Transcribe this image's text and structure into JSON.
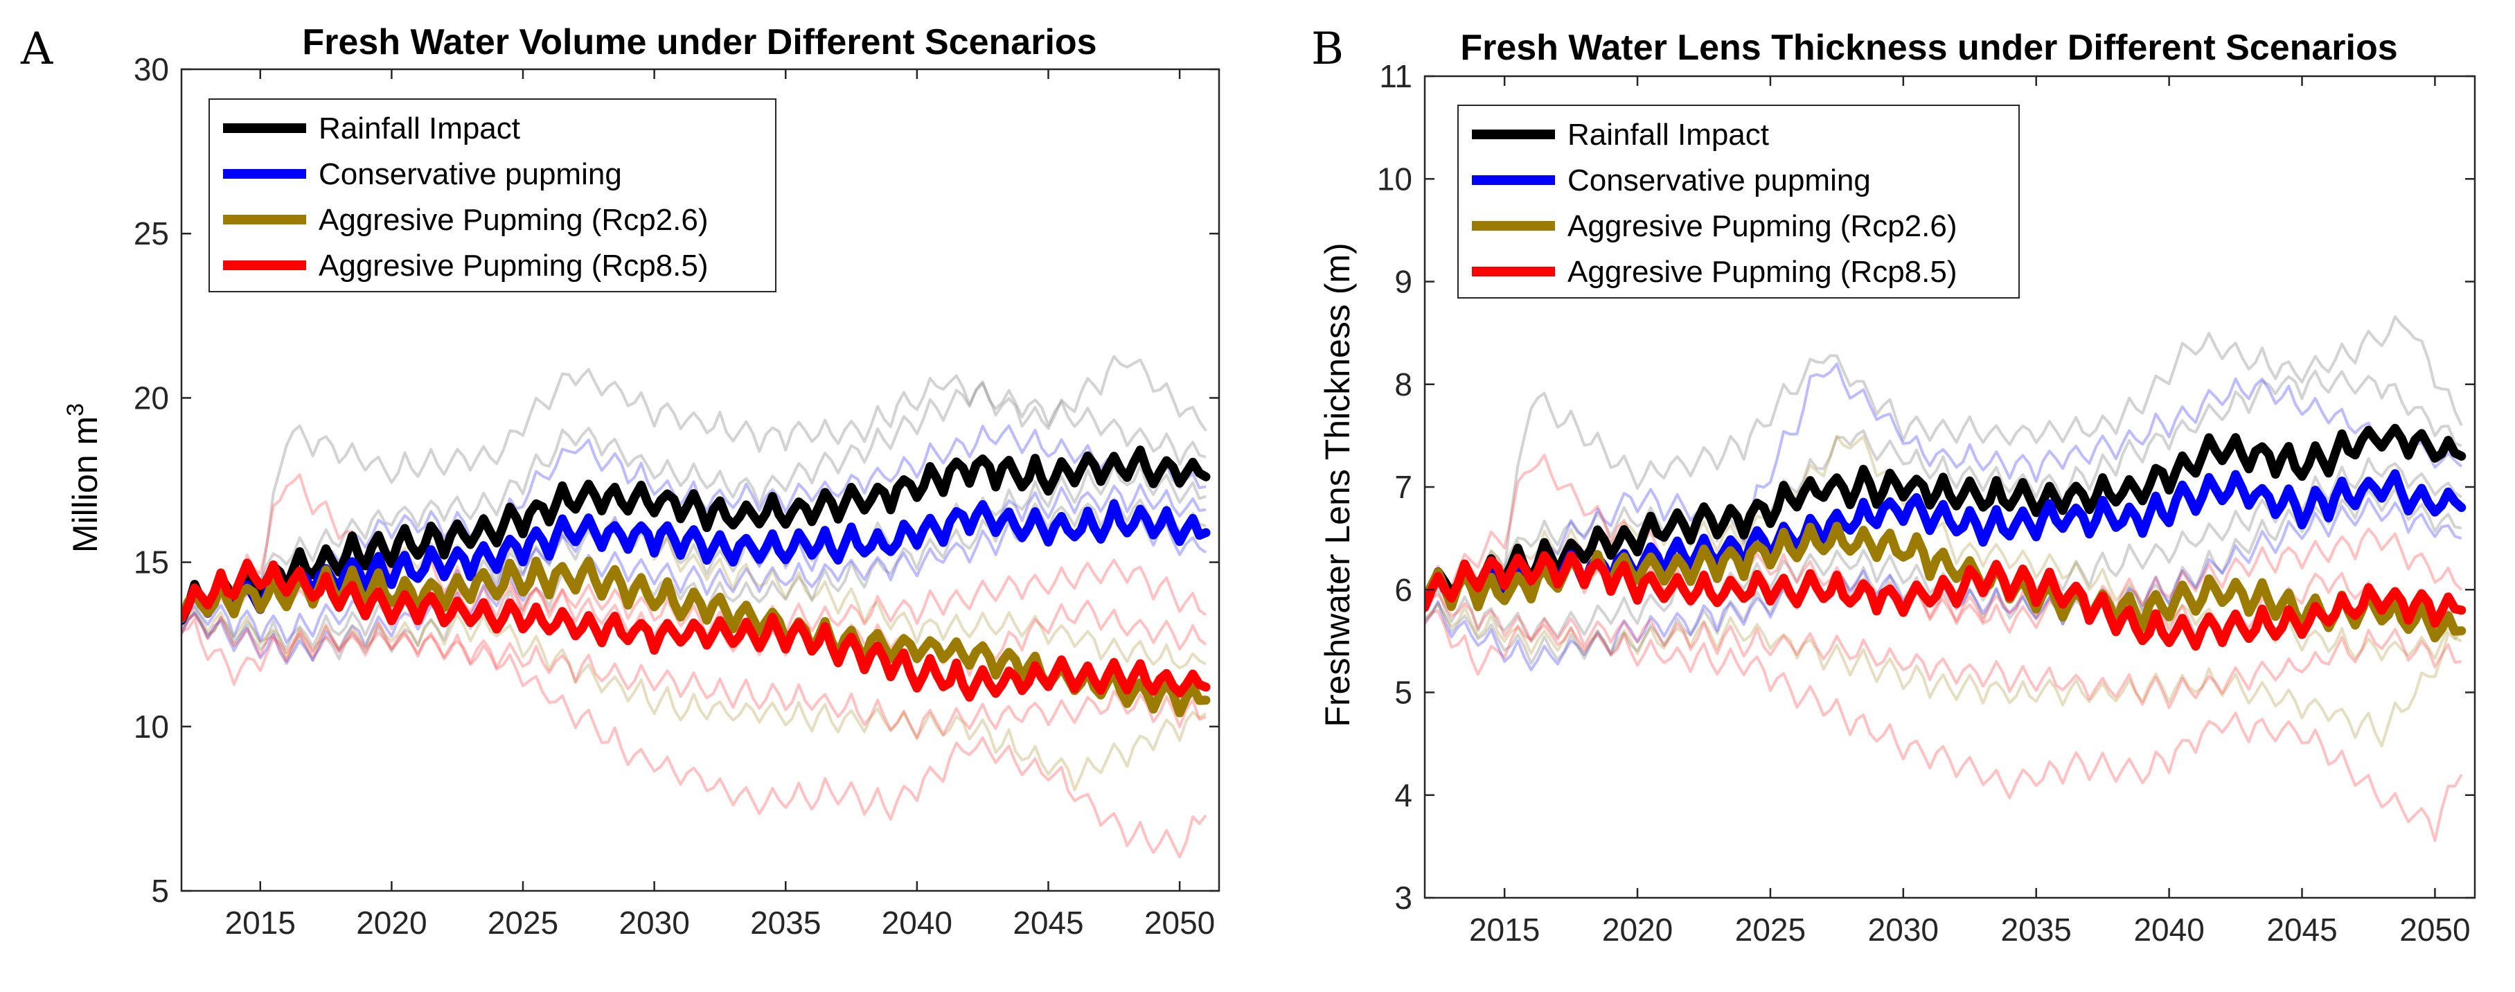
{
  "chart_data": [
    {
      "type": "line",
      "panel_label": "A",
      "title": "Fresh Water Volume under Different Scenarios",
      "xlabel": "",
      "ylabel": "Million m",
      "ylabel_superscript": "3",
      "xlim": [
        2012,
        2051.5
      ],
      "ylim": [
        5,
        30
      ],
      "xticks": [
        2015,
        2020,
        2025,
        2030,
        2035,
        2040,
        2045,
        2050
      ],
      "yticks": [
        5,
        10,
        15,
        20,
        25,
        30
      ],
      "legend_location": "top-left",
      "series": [
        {
          "name": "Rainfall Impact",
          "color": "#000000",
          "x": [
            2012,
            2015,
            2018,
            2021,
            2024,
            2027,
            2030,
            2033,
            2036,
            2039,
            2042,
            2045,
            2048,
            2051
          ],
          "y": [
            13.7,
            14.4,
            15.2,
            15.6,
            16.0,
            17.0,
            16.9,
            16.4,
            16.6,
            17.1,
            17.9,
            17.6,
            18.0,
            17.6
          ]
        },
        {
          "name": "Conservative pupming",
          "color": "#0000ff",
          "x": [
            2012,
            2015,
            2018,
            2021,
            2024,
            2027,
            2030,
            2033,
            2036,
            2039,
            2042,
            2045,
            2048,
            2051
          ],
          "y": [
            13.7,
            14.1,
            14.6,
            14.8,
            15.2,
            15.9,
            15.8,
            15.4,
            15.5,
            15.6,
            16.4,
            16.0,
            16.3,
            15.9
          ]
        },
        {
          "name": "Aggresive Pupming (Rcp2.6)",
          "color": "#9b7b00",
          "x": [
            2012,
            2015,
            2018,
            2021,
            2024,
            2027,
            2030,
            2033,
            2036,
            2039,
            2042,
            2045,
            2048,
            2051
          ],
          "y": [
            13.7,
            14.0,
            14.3,
            14.0,
            14.4,
            14.6,
            14.0,
            13.5,
            12.8,
            12.4,
            12.3,
            11.6,
            11.1,
            10.8
          ]
        },
        {
          "name": "Aggresive Pupming (Rcp8.5)",
          "color": "#ff0000",
          "x": [
            2012,
            2015,
            2018,
            2021,
            2024,
            2027,
            2030,
            2033,
            2036,
            2039,
            2042,
            2045,
            2048,
            2051
          ],
          "y": [
            13.7,
            14.6,
            14.0,
            13.6,
            13.4,
            13.1,
            12.8,
            12.9,
            12.7,
            11.9,
            11.3,
            11.5,
            11.5,
            11.2
          ]
        }
      ],
      "background_traces": [
        {
          "color": "#808080",
          "x": [
            2012,
            2015,
            2016,
            2020,
            2024,
            2027,
            2030,
            2034,
            2038,
            2041,
            2045,
            2048,
            2051
          ],
          "y": [
            13.7,
            14.5,
            19.0,
            17.8,
            18.3,
            20.8,
            19.6,
            18.8,
            19.1,
            20.5,
            19.3,
            21.2,
            19.0
          ]
        },
        {
          "color": "#808080",
          "x": [
            2012,
            2016,
            2020,
            2024,
            2027,
            2030,
            2034,
            2038,
            2042,
            2046,
            2051
          ],
          "y": [
            13.5,
            15.2,
            16.4,
            16.8,
            19.0,
            17.8,
            17.2,
            18.4,
            20.2,
            19.4,
            18.2
          ]
        },
        {
          "color": "#808080",
          "x": [
            2012,
            2016,
            2020,
            2024,
            2028,
            2032,
            2036,
            2040,
            2044,
            2048,
            2051
          ],
          "y": [
            13.2,
            12.7,
            13.4,
            14.8,
            15.8,
            15.1,
            15.3,
            16.0,
            16.9,
            17.6,
            17.0
          ]
        },
        {
          "color": "#808080",
          "x": [
            2012,
            2016,
            2020,
            2024,
            2028,
            2032,
            2036,
            2040,
            2044,
            2048,
            2051
          ],
          "y": [
            13.3,
            12.4,
            12.6,
            13.6,
            14.6,
            14.0,
            14.2,
            15.2,
            16.3,
            16.6,
            16.1
          ]
        },
        {
          "color": "#4040ff",
          "x": [
            2012,
            2016,
            2020,
            2024,
            2027,
            2031,
            2035,
            2039,
            2043,
            2047,
            2051
          ],
          "y": [
            13.6,
            14.6,
            16.2,
            16.1,
            18.6,
            17.0,
            16.9,
            17.7,
            18.9,
            18.1,
            17.3
          ]
        },
        {
          "color": "#4040ff",
          "x": [
            2012,
            2016,
            2020,
            2024,
            2028,
            2032,
            2036,
            2040,
            2044,
            2048,
            2051
          ],
          "y": [
            13.3,
            12.2,
            13.1,
            14.0,
            15.0,
            14.4,
            14.6,
            15.0,
            15.9,
            16.3,
            15.3
          ]
        },
        {
          "color": "#4040ff",
          "x": [
            2012,
            2016,
            2020,
            2024,
            2028,
            2032,
            2036,
            2040,
            2044,
            2048,
            2051
          ],
          "y": [
            13.5,
            12.9,
            13.9,
            14.6,
            16.0,
            15.4,
            15.2,
            15.8,
            16.7,
            17.0,
            16.6
          ]
        },
        {
          "color": "#b5a14a",
          "x": [
            2012,
            2016,
            2020,
            2024,
            2028,
            2032,
            2036,
            2040,
            2044,
            2048,
            2051
          ],
          "y": [
            13.6,
            14.3,
            15.2,
            15.0,
            16.2,
            14.8,
            14.2,
            13.0,
            13.1,
            12.3,
            11.9
          ]
        },
        {
          "color": "#b5a14a",
          "x": [
            2012,
            2016,
            2020,
            2024,
            2028,
            2031,
            2034,
            2038,
            2042,
            2046,
            2049,
            2051
          ],
          "y": [
            13.4,
            12.6,
            12.9,
            13.0,
            11.3,
            10.6,
            10.4,
            10.2,
            10.0,
            8.5,
            9.6,
            10.4
          ]
        },
        {
          "color": "#ff4d4d",
          "x": [
            2012,
            2015,
            2016,
            2019,
            2022,
            2026,
            2030,
            2034,
            2038,
            2042,
            2046,
            2051
          ],
          "y": [
            13.6,
            15.0,
            17.6,
            15.3,
            14.5,
            13.8,
            13.0,
            12.5,
            12.8,
            12.0,
            13.5,
            12.5
          ]
        },
        {
          "color": "#ff4d4d",
          "x": [
            2012,
            2014,
            2016,
            2020,
            2024,
            2026,
            2029,
            2032,
            2034,
            2037,
            2039,
            2042,
            2045,
            2048,
            2050,
            2051
          ],
          "y": [
            13.3,
            11.6,
            12.6,
            12.7,
            12.1,
            11.0,
            9.2,
            8.3,
            7.7,
            8.0,
            7.6,
            9.4,
            8.6,
            6.8,
            6.3,
            7.3
          ]
        },
        {
          "color": "#ff4d4d",
          "x": [
            2012,
            2016,
            2020,
            2024,
            2028,
            2032,
            2036,
            2040,
            2044,
            2048,
            2051
          ],
          "y": [
            13.2,
            12.4,
            12.6,
            12.2,
            11.7,
            11.1,
            10.8,
            10.1,
            10.4,
            10.7,
            10.3
          ]
        },
        {
          "color": "#ff4d4d",
          "x": [
            2012,
            2016,
            2020,
            2024,
            2028,
            2032,
            2036,
            2040,
            2044,
            2048,
            2051
          ],
          "y": [
            13.5,
            13.9,
            14.0,
            13.8,
            13.9,
            13.2,
            13.3,
            13.6,
            14.3,
            14.8,
            13.4
          ]
        }
      ]
    },
    {
      "type": "line",
      "panel_label": "B",
      "title": "Fresh Water Lens Thickness under Different Scenarios",
      "xlabel": "",
      "ylabel": "Freshwater Lens Thickness (m)",
      "xlim": [
        2012,
        2051.5
      ],
      "ylim": [
        3,
        11
      ],
      "xticks": [
        2015,
        2020,
        2025,
        2030,
        2035,
        2040,
        2045,
        2050
      ],
      "yticks": [
        3,
        4,
        5,
        6,
        7,
        8,
        9,
        10,
        11
      ],
      "legend_location": "top-left",
      "series": [
        {
          "name": "Rainfall Impact",
          "color": "#000000",
          "x": [
            2012,
            2015,
            2018,
            2021,
            2024,
            2027,
            2030,
            2033,
            2036,
            2039,
            2042,
            2045,
            2048,
            2051
          ],
          "y": [
            6.0,
            6.2,
            6.4,
            6.6,
            6.7,
            7.0,
            7.0,
            6.9,
            6.9,
            7.0,
            7.4,
            7.2,
            7.5,
            7.3
          ]
        },
        {
          "name": "Conservative pupming",
          "color": "#0000ff",
          "x": [
            2012,
            2015,
            2018,
            2021,
            2024,
            2027,
            2030,
            2033,
            2036,
            2039,
            2042,
            2045,
            2048,
            2051
          ],
          "y": [
            6.0,
            6.1,
            6.2,
            6.3,
            6.4,
            6.6,
            6.8,
            6.6,
            6.7,
            6.7,
            7.0,
            6.8,
            7.0,
            6.8
          ]
        },
        {
          "name": "Aggresive Pupming (Rcp2.6)",
          "color": "#9b7b00",
          "x": [
            2012,
            2015,
            2018,
            2021,
            2024,
            2027,
            2030,
            2033,
            2036,
            2039,
            2042,
            2045,
            2048,
            2051
          ],
          "y": [
            6.0,
            6.0,
            6.2,
            6.2,
            6.3,
            6.5,
            6.4,
            6.1,
            5.9,
            5.8,
            6.0,
            5.8,
            5.8,
            5.6
          ]
        },
        {
          "name": "Aggresive Pupming (Rcp8.5)",
          "color": "#ff0000",
          "x": [
            2012,
            2015,
            2018,
            2021,
            2024,
            2027,
            2030,
            2033,
            2036,
            2039,
            2042,
            2045,
            2048,
            2051
          ],
          "y": [
            6.0,
            6.2,
            6.2,
            6.0,
            6.0,
            6.0,
            5.9,
            6.1,
            6.0,
            5.6,
            5.6,
            5.7,
            5.9,
            5.8
          ]
        }
      ],
      "background_traces": [
        {
          "color": "#808080",
          "x": [
            2012,
            2015,
            2016,
            2020,
            2024,
            2027,
            2030,
            2034,
            2038,
            2041,
            2045,
            2049,
            2051
          ],
          "y": [
            6.0,
            6.3,
            7.9,
            7.1,
            7.4,
            8.3,
            7.6,
            7.5,
            7.6,
            8.4,
            8.1,
            8.6,
            7.6
          ]
        },
        {
          "color": "#808080",
          "x": [
            2012,
            2016,
            2020,
            2024,
            2028,
            2032,
            2036,
            2040,
            2044,
            2048,
            2051
          ],
          "y": [
            5.9,
            6.5,
            6.7,
            6.6,
            7.5,
            7.1,
            7.0,
            7.5,
            8.0,
            8.0,
            7.4
          ]
        },
        {
          "color": "#808080",
          "x": [
            2012,
            2016,
            2020,
            2024,
            2028,
            2032,
            2036,
            2040,
            2044,
            2048,
            2051
          ],
          "y": [
            5.9,
            5.6,
            5.8,
            6.1,
            6.3,
            6.0,
            6.1,
            6.4,
            6.8,
            7.2,
            6.9
          ]
        },
        {
          "color": "#808080",
          "x": [
            2012,
            2016,
            2020,
            2024,
            2028,
            2032,
            2036,
            2040,
            2044,
            2048,
            2051
          ],
          "y": [
            5.8,
            5.4,
            5.5,
            5.8,
            6.1,
            5.9,
            5.8,
            6.0,
            6.6,
            6.9,
            6.6
          ]
        },
        {
          "color": "#4040ff",
          "x": [
            2012,
            2016,
            2020,
            2024,
            2027,
            2031,
            2035,
            2039,
            2043,
            2047,
            2051
          ],
          "y": [
            6.0,
            6.3,
            6.9,
            6.6,
            8.2,
            7.3,
            7.2,
            7.5,
            8.0,
            7.6,
            7.2
          ]
        },
        {
          "color": "#4040ff",
          "x": [
            2012,
            2016,
            2020,
            2024,
            2028,
            2032,
            2036,
            2040,
            2044,
            2048,
            2051
          ],
          "y": [
            5.8,
            5.3,
            5.6,
            5.8,
            6.1,
            5.9,
            5.8,
            6.0,
            6.5,
            6.8,
            6.5
          ]
        },
        {
          "color": "#b5a14a",
          "x": [
            2012,
            2016,
            2020,
            2024,
            2028,
            2032,
            2036,
            2040,
            2044,
            2048,
            2051
          ],
          "y": [
            6.0,
            6.4,
            6.6,
            6.5,
            7.5,
            6.4,
            6.2,
            5.8,
            5.6,
            5.4,
            5.5
          ]
        },
        {
          "color": "#b5a14a",
          "x": [
            2012,
            2016,
            2020,
            2024,
            2028,
            2031,
            2034,
            2038,
            2042,
            2046,
            2048,
            2051
          ],
          "y": [
            5.8,
            5.5,
            5.5,
            5.6,
            5.3,
            5.1,
            5.0,
            5.0,
            5.1,
            4.8,
            4.6,
            5.6
          ]
        },
        {
          "color": "#ff4d4d",
          "x": [
            2012,
            2015,
            2016,
            2019,
            2022,
            2026,
            2030,
            2034,
            2038,
            2042,
            2046,
            2051
          ],
          "y": [
            6.0,
            6.5,
            7.3,
            6.6,
            6.3,
            6.2,
            5.9,
            5.7,
            5.9,
            5.6,
            6.1,
            5.6
          ]
        },
        {
          "color": "#ff4d4d",
          "x": [
            2012,
            2014,
            2016,
            2020,
            2024,
            2026,
            2029,
            2032,
            2034,
            2037,
            2039,
            2042,
            2045,
            2048,
            2050,
            2051
          ],
          "y": [
            5.8,
            5.3,
            5.6,
            5.4,
            5.3,
            5.0,
            4.6,
            4.3,
            4.1,
            4.3,
            4.2,
            4.7,
            4.6,
            4.0,
            3.7,
            4.2
          ]
        },
        {
          "color": "#ff4d4d",
          "x": [
            2012,
            2016,
            2020,
            2024,
            2028,
            2032,
            2036,
            2040,
            2044,
            2048,
            2051
          ],
          "y": [
            5.9,
            5.6,
            5.6,
            5.5,
            5.4,
            5.2,
            5.1,
            5.0,
            5.2,
            5.5,
            5.3
          ]
        },
        {
          "color": "#ff4d4d",
          "x": [
            2012,
            2016,
            2020,
            2024,
            2028,
            2032,
            2036,
            2040,
            2044,
            2048,
            2051
          ],
          "y": [
            6.0,
            6.1,
            6.1,
            6.0,
            6.0,
            5.8,
            5.9,
            6.0,
            6.3,
            6.5,
            6.0
          ]
        }
      ]
    }
  ]
}
